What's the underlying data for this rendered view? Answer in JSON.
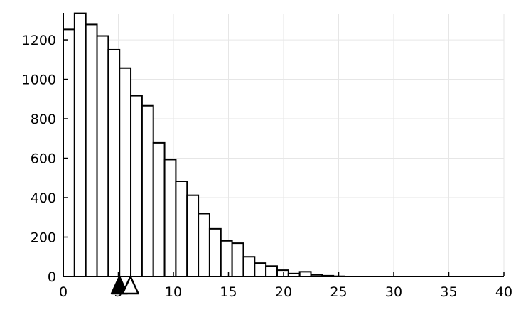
{
  "chart_data": {
    "type": "bar",
    "title": "",
    "xlabel": "",
    "ylabel": "",
    "xlim": [
      0,
      40
    ],
    "ylim": [
      0,
      1330
    ],
    "x_ticks": [
      0,
      5,
      10,
      15,
      20,
      25,
      30,
      35,
      40
    ],
    "x_tick_labels": [
      "0",
      "5",
      "10",
      "15",
      "20",
      "25",
      "30",
      "35",
      "40"
    ],
    "y_ticks": [
      0,
      200,
      400,
      600,
      800,
      1000,
      1200
    ],
    "y_tick_labels": [
      "0",
      "200",
      "400",
      "600",
      "800",
      "1000",
      "1200"
    ],
    "grid": true,
    "legend": "none",
    "bin_width": 1.022,
    "bin_edges_start": 0,
    "values": [
      1253,
      1335,
      1278,
      1220,
      1150,
      1057,
      917,
      866,
      678,
      593,
      483,
      412,
      319,
      242,
      181,
      169,
      100,
      68,
      53,
      32,
      15,
      24,
      8,
      4,
      1,
      0,
      0,
      0,
      0,
      0,
      0,
      0,
      0,
      0,
      0,
      0,
      0,
      0,
      0
    ],
    "markers": [
      {
        "shape": "triangle-filled",
        "x": 5.1
      },
      {
        "shape": "triangle-open",
        "x": 6.1
      }
    ],
    "colors": {
      "bar_fill": "#ffffff",
      "bar_edge": "#000000",
      "grid": "#e6e6e6",
      "axis": "#000000"
    }
  }
}
